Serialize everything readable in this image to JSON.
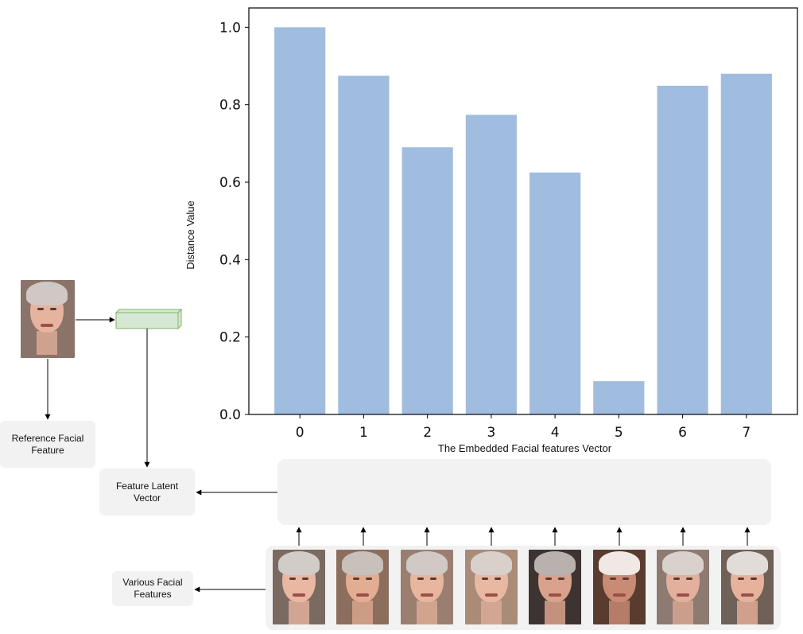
{
  "chart_data": {
    "type": "bar",
    "categories": [
      "0",
      "1",
      "2",
      "3",
      "4",
      "5",
      "6",
      "7"
    ],
    "values": [
      1.0,
      0.875,
      0.69,
      0.774,
      0.625,
      0.086,
      0.849,
      0.88
    ],
    "title": "",
    "xlabel": "The Embedded Facial features Vector",
    "ylabel": "Distance Value",
    "ylim": [
      0,
      1.05
    ],
    "yticks": [
      "0.0",
      "0.2",
      "0.4",
      "0.6",
      "0.8",
      "1.0"
    ],
    "bar_color": "#a0bde0"
  },
  "diagram": {
    "reference_label_line1": "Reference Facial",
    "reference_label_line2": "Feature",
    "latent_label_line1": "Feature Latent",
    "latent_label_line2": "Vector",
    "various_label_line1": "Various Facial",
    "various_label_line2": "Features",
    "vector_fill": "#d5e8d4",
    "vector_stroke": "#82b366",
    "box_fill": "#f2f2f2"
  },
  "faces": [
    "reference-face",
    "face-0",
    "face-1",
    "face-2",
    "face-3",
    "face-4",
    "face-5",
    "face-6",
    "face-7"
  ]
}
